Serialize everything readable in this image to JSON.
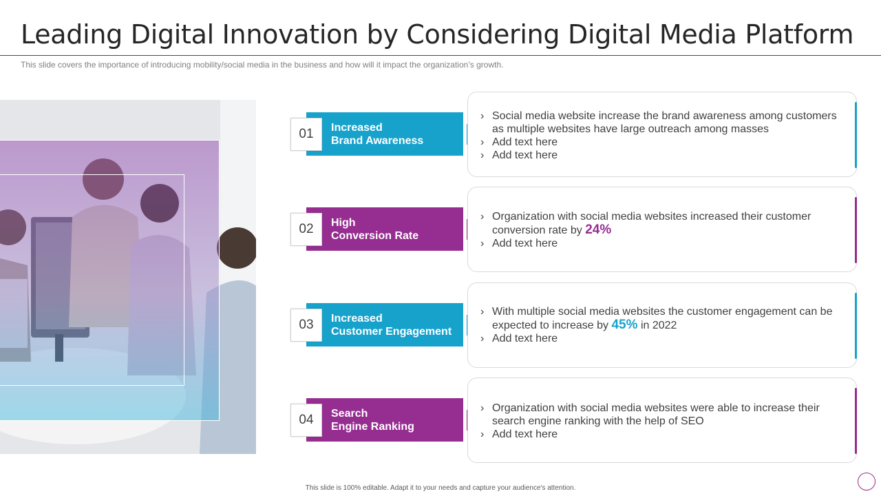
{
  "slide": {
    "title": "Leading Digital Innovation by Considering Digital Media Platform",
    "subtitle": "This slide covers the importance of introducing mobility/social media in the business and how will it impact the organization’s growth.",
    "footer": "This slide is 100% editable. Adapt it to your needs and capture your audience's attention."
  },
  "colors": {
    "blue": "#17a2cc",
    "purple": "#962d91",
    "title_rule": "#7a2582"
  },
  "items": [
    {
      "number": "01",
      "label_line1": "Increased",
      "label_line2": "Brand Awareness",
      "color": "blue",
      "bullets": [
        "Social media website increase the brand awareness among customers as multiple websites have large outreach among masses",
        "Add text here",
        "Add text here"
      ]
    },
    {
      "number": "02",
      "label_line1": "High",
      "label_line2": "Conversion Rate",
      "color": "purple",
      "bullet1_prefix": "Organization with social media websites increased their customer conversion rate by",
      "bullet1_highlight": "24%",
      "bullets": [
        "Add text here"
      ]
    },
    {
      "number": "03",
      "label_line1": "Increased",
      "label_line2": "Customer Engagement",
      "color": "blue",
      "bullet1_prefix": "With multiple social media websites the customer engagement can be expected to increase by",
      "bullet1_highlight": "45%",
      "bullet1_suffix": "in 2022",
      "bullets": [
        "Add text here"
      ]
    },
    {
      "number": "04",
      "label_line1": "Search",
      "label_line2": "Engine Ranking",
      "color": "purple",
      "bullets": [
        "Organization with social media websites were able to increase their search engine ranking with the help of SEO",
        "Add text here"
      ]
    }
  ]
}
